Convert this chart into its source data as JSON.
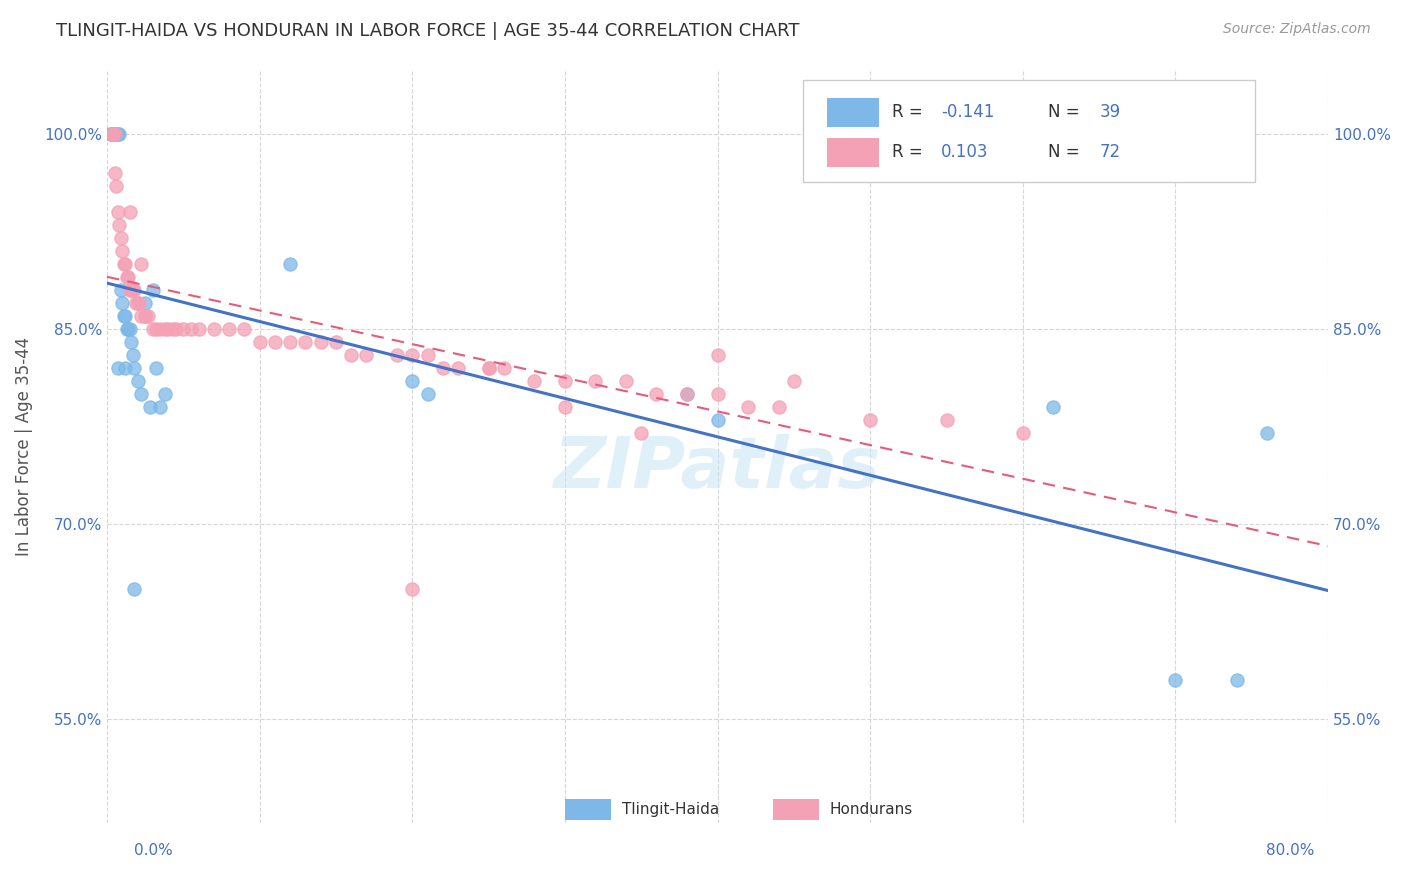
{
  "title": "TLINGIT-HAIDA VS HONDURAN IN LABOR FORCE | AGE 35-44 CORRELATION CHART",
  "source": "Source: ZipAtlas.com",
  "ylabel": "In Labor Force | Age 35-44",
  "xlim": [
    0.0,
    0.8
  ],
  "ylim": [
    0.47,
    1.05
  ],
  "tlingit_color": "#7db8e8",
  "honduran_color": "#f4a0b5",
  "trendline_tlingit_color": "#4472c4",
  "trendline_honduran_color": "#e85a78",
  "R_tlingit": -0.141,
  "N_tlingit": 39,
  "R_honduran": 0.103,
  "N_honduran": 72,
  "tlingit_scatter_x": [
    0.002,
    0.003,
    0.004,
    0.004,
    0.005,
    0.005,
    0.006,
    0.007,
    0.008,
    0.009,
    0.01,
    0.011,
    0.012,
    0.013,
    0.014,
    0.015,
    0.016,
    0.017,
    0.018,
    0.02,
    0.022,
    0.025,
    0.028,
    0.03,
    0.032,
    0.035,
    0.038,
    0.12,
    0.2,
    0.21,
    0.38,
    0.4,
    0.62,
    0.7,
    0.74,
    0.76,
    0.007,
    0.012,
    0.018
  ],
  "tlingit_scatter_y": [
    1.0,
    1.0,
    1.0,
    1.0,
    1.0,
    1.0,
    1.0,
    1.0,
    1.0,
    0.88,
    0.87,
    0.86,
    0.86,
    0.85,
    0.85,
    0.85,
    0.84,
    0.83,
    0.82,
    0.81,
    0.8,
    0.87,
    0.79,
    0.88,
    0.82,
    0.79,
    0.8,
    0.9,
    0.81,
    0.8,
    0.8,
    0.78,
    0.79,
    0.58,
    0.58,
    0.77,
    0.82,
    0.82,
    0.65
  ],
  "honduran_scatter_x": [
    0.003,
    0.004,
    0.005,
    0.005,
    0.006,
    0.007,
    0.008,
    0.009,
    0.01,
    0.011,
    0.012,
    0.013,
    0.014,
    0.015,
    0.015,
    0.016,
    0.017,
    0.018,
    0.019,
    0.02,
    0.021,
    0.022,
    0.022,
    0.025,
    0.025,
    0.027,
    0.03,
    0.032,
    0.035,
    0.038,
    0.04,
    0.043,
    0.045,
    0.05,
    0.055,
    0.06,
    0.07,
    0.08,
    0.09,
    0.1,
    0.11,
    0.12,
    0.13,
    0.14,
    0.15,
    0.16,
    0.17,
    0.19,
    0.2,
    0.21,
    0.22,
    0.23,
    0.25,
    0.26,
    0.28,
    0.3,
    0.32,
    0.34,
    0.36,
    0.38,
    0.4,
    0.42,
    0.44,
    0.2,
    0.25,
    0.3,
    0.35,
    0.4,
    0.45,
    0.5,
    0.55,
    0.6
  ],
  "honduran_scatter_y": [
    1.0,
    1.0,
    1.0,
    0.97,
    0.96,
    0.94,
    0.93,
    0.92,
    0.91,
    0.9,
    0.9,
    0.89,
    0.89,
    0.88,
    0.94,
    0.88,
    0.88,
    0.88,
    0.87,
    0.87,
    0.87,
    0.86,
    0.9,
    0.86,
    0.86,
    0.86,
    0.85,
    0.85,
    0.85,
    0.85,
    0.85,
    0.85,
    0.85,
    0.85,
    0.85,
    0.85,
    0.85,
    0.85,
    0.85,
    0.84,
    0.84,
    0.84,
    0.84,
    0.84,
    0.84,
    0.83,
    0.83,
    0.83,
    0.83,
    0.83,
    0.82,
    0.82,
    0.82,
    0.82,
    0.81,
    0.81,
    0.81,
    0.81,
    0.8,
    0.8,
    0.8,
    0.79,
    0.79,
    0.65,
    0.82,
    0.79,
    0.77,
    0.83,
    0.81,
    0.78,
    0.78,
    0.77
  ]
}
